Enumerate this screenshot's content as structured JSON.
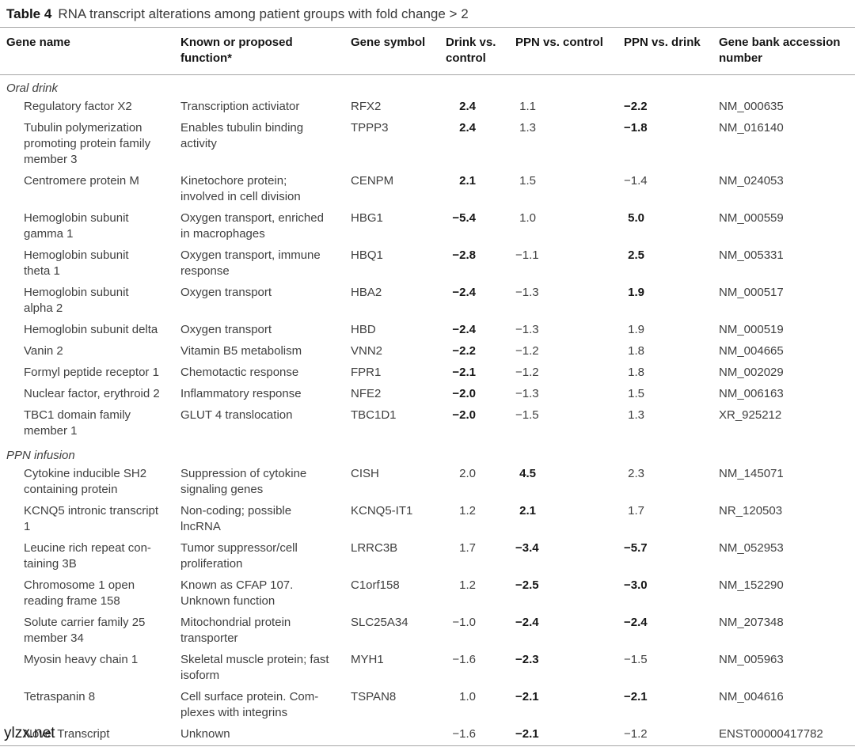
{
  "title": {
    "label": "Table 4",
    "text": "RNA transcript alterations among patient groups with fold change > 2"
  },
  "columns": [
    "Gene name",
    "Known or proposed\nfunction*",
    "Gene symbol",
    "Drink vs.\ncontrol",
    "PPN vs. control",
    "PPN vs. drink",
    "Gene bank accession\nnumber"
  ],
  "watermark": "ylzx.net",
  "sections": [
    {
      "label": "Oral drink",
      "rows": [
        {
          "gene": "Regulatory factor X2",
          "function": "Transcription activiator",
          "symbol": "RFX2",
          "drink": "2.4",
          "drink_bold": true,
          "ppn_control": "1.1",
          "ppn_control_bold": false,
          "ppn_drink": "−2.2",
          "ppn_drink_bold": true,
          "accession": "NM_000635"
        },
        {
          "gene": "Tubulin polymerization\npromoting protein family\nmember 3",
          "function": "Enables tubulin binding\nactivity",
          "symbol": "TPPP3",
          "drink": "2.4",
          "drink_bold": true,
          "ppn_control": "1.3",
          "ppn_control_bold": false,
          "ppn_drink": "−1.8",
          "ppn_drink_bold": true,
          "accession": "NM_016140"
        },
        {
          "gene": "Centromere protein M",
          "function": "Kinetochore protein;\ninvolved in cell division",
          "symbol": "CENPM",
          "drink": "2.1",
          "drink_bold": true,
          "ppn_control": "1.5",
          "ppn_control_bold": false,
          "ppn_drink": "−1.4",
          "ppn_drink_bold": false,
          "accession": "NM_024053"
        },
        {
          "gene": "Hemoglobin subunit\ngamma 1",
          "function": "Oxygen transport, enriched\nin macrophages",
          "symbol": "HBG1",
          "drink": "−5.4",
          "drink_bold": true,
          "ppn_control": "1.0",
          "ppn_control_bold": false,
          "ppn_drink": "5.0",
          "ppn_drink_bold": true,
          "accession": "NM_000559"
        },
        {
          "gene": "Hemoglobin subunit\ntheta 1",
          "function": "Oxygen transport, immune\nresponse",
          "symbol": "HBQ1",
          "drink": "−2.8",
          "drink_bold": true,
          "ppn_control": "−1.1",
          "ppn_control_bold": false,
          "ppn_drink": "2.5",
          "ppn_drink_bold": true,
          "accession": "NM_005331"
        },
        {
          "gene": "Hemoglobin subunit\nalpha 2",
          "function": "Oxygen transport",
          "symbol": "HBA2",
          "drink": "−2.4",
          "drink_bold": true,
          "ppn_control": "−1.3",
          "ppn_control_bold": false,
          "ppn_drink": "1.9",
          "ppn_drink_bold": true,
          "accession": "NM_000517"
        },
        {
          "gene": "Hemoglobin subunit delta",
          "function": "Oxygen transport",
          "symbol": "HBD",
          "drink": "−2.4",
          "drink_bold": true,
          "ppn_control": "−1.3",
          "ppn_control_bold": false,
          "ppn_drink": "1.9",
          "ppn_drink_bold": false,
          "accession": "NM_000519"
        },
        {
          "gene": "Vanin 2",
          "function": "Vitamin B5 metabolism",
          "symbol": "VNN2",
          "drink": "−2.2",
          "drink_bold": true,
          "ppn_control": "−1.2",
          "ppn_control_bold": false,
          "ppn_drink": "1.8",
          "ppn_drink_bold": false,
          "accession": "NM_004665"
        },
        {
          "gene": "Formyl peptide receptor 1",
          "function": "Chemotactic response",
          "symbol": "FPR1",
          "drink": "−2.1",
          "drink_bold": true,
          "ppn_control": "−1.2",
          "ppn_control_bold": false,
          "ppn_drink": "1.8",
          "ppn_drink_bold": false,
          "accession": "NM_002029"
        },
        {
          "gene": "Nuclear factor, erythroid 2",
          "function": "Inflammatory response",
          "symbol": "NFE2",
          "drink": "−2.0",
          "drink_bold": true,
          "ppn_control": "−1.3",
          "ppn_control_bold": false,
          "ppn_drink": "1.5",
          "ppn_drink_bold": false,
          "accession": "NM_006163"
        },
        {
          "gene": "TBC1 domain family\nmember 1",
          "function": "GLUT 4 translocation",
          "symbol": "TBC1D1",
          "drink": "−2.0",
          "drink_bold": true,
          "ppn_control": "−1.5",
          "ppn_control_bold": false,
          "ppn_drink": "1.3",
          "ppn_drink_bold": false,
          "accession": "XR_925212"
        }
      ]
    },
    {
      "label": "PPN infusion",
      "rows": [
        {
          "gene": "Cytokine inducible SH2\ncontaining protein",
          "function": "Suppression of cytokine\nsignaling genes",
          "symbol": "CISH",
          "drink": "2.0",
          "drink_bold": false,
          "ppn_control": "4.5",
          "ppn_control_bold": true,
          "ppn_drink": "2.3",
          "ppn_drink_bold": false,
          "accession": "NM_145071"
        },
        {
          "gene": "KCNQ5 intronic transcript\n1",
          "function": "Non-coding; possible\nlncRNA",
          "symbol": "KCNQ5-IT1",
          "drink": "1.2",
          "drink_bold": false,
          "ppn_control": "2.1",
          "ppn_control_bold": true,
          "ppn_drink": "1.7",
          "ppn_drink_bold": false,
          "accession": "NR_120503"
        },
        {
          "gene": "Leucine rich repeat con-\ntaining 3B",
          "function": "Tumor suppressor/cell\nproliferation",
          "symbol": "LRRC3B",
          "drink": "1.7",
          "drink_bold": false,
          "ppn_control": "−3.4",
          "ppn_control_bold": true,
          "ppn_drink": "−5.7",
          "ppn_drink_bold": true,
          "accession": "NM_052953"
        },
        {
          "gene": "Chromosome 1 open\nreading frame 158",
          "function": "Known as CFAP 107.\nUnknown function",
          "symbol": "C1orf158",
          "drink": "1.2",
          "drink_bold": false,
          "ppn_control": "−2.5",
          "ppn_control_bold": true,
          "ppn_drink": "−3.0",
          "ppn_drink_bold": true,
          "accession": "NM_152290"
        },
        {
          "gene": "Solute carrier family 25\nmember 34",
          "function": "Mitochondrial protein\ntransporter",
          "symbol": "SLC25A34",
          "drink": "−1.0",
          "drink_bold": false,
          "ppn_control": "−2.4",
          "ppn_control_bold": true,
          "ppn_drink": "−2.4",
          "ppn_drink_bold": true,
          "accession": "NM_207348"
        },
        {
          "gene": "Myosin heavy chain 1",
          "function": "Skeletal muscle protein; fast\nisoform",
          "symbol": "MYH1",
          "drink": "−1.6",
          "drink_bold": false,
          "ppn_control": "−2.3",
          "ppn_control_bold": true,
          "ppn_drink": "−1.5",
          "ppn_drink_bold": false,
          "accession": "NM_005963"
        },
        {
          "gene": "Tetraspanin 8",
          "function": "Cell surface protein. Com-\nplexes with integrins",
          "symbol": "TSPAN8",
          "drink": "1.0",
          "drink_bold": false,
          "ppn_control": "−2.1",
          "ppn_control_bold": true,
          "ppn_drink": "−2.1",
          "ppn_drink_bold": true,
          "accession": "NM_004616"
        },
        {
          "gene": "Novel Transcript",
          "function": "Unknown",
          "symbol": "",
          "drink": "−1.6",
          "drink_bold": false,
          "ppn_control": "−2.1",
          "ppn_control_bold": true,
          "ppn_drink": "−1.2",
          "ppn_drink_bold": false,
          "accession": "ENST00000417782"
        }
      ]
    }
  ]
}
